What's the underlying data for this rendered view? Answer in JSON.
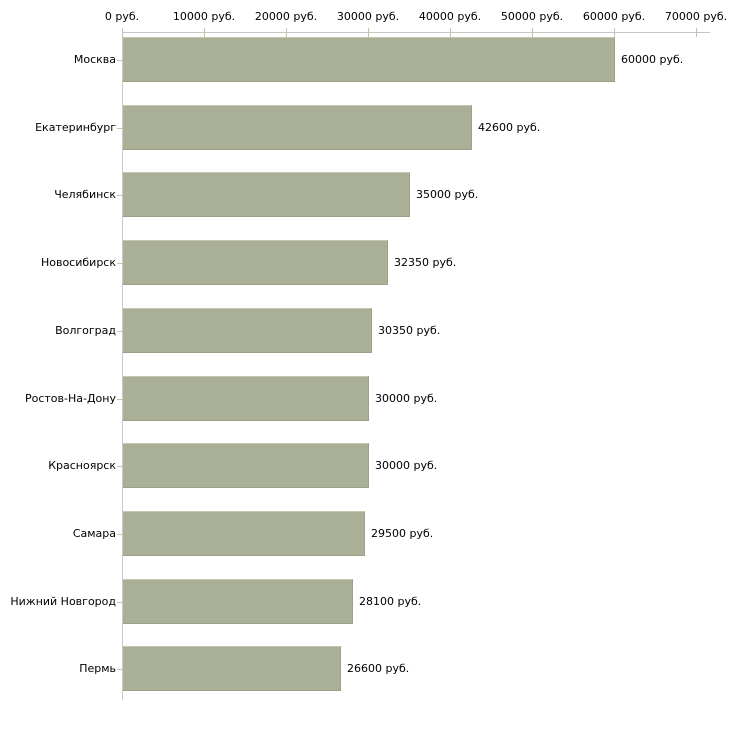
{
  "chart_data": {
    "type": "bar",
    "orientation": "horizontal",
    "title": "",
    "categories": [
      "Москва",
      "Екатеринбург",
      "Челябинск",
      "Новосибирск",
      "Волгоград",
      "Ростов-На-Дону",
      "Красноярск",
      "Самара",
      "Нижний Новгород",
      "Пермь"
    ],
    "values": [
      60000,
      42600,
      35000,
      32350,
      30350,
      30000,
      30000,
      29500,
      28100,
      26600
    ],
    "value_labels": [
      "60000 руб.",
      "42600 руб.",
      "35000 руб.",
      "32350 руб.",
      "30350 руб.",
      "30000 руб.",
      "30000 руб.",
      "29500 руб.",
      "28100 руб.",
      "26600 руб."
    ],
    "x_axis": {
      "min": 0,
      "max": 70000,
      "unit": "руб.",
      "tick_values": [
        0,
        10000,
        20000,
        30000,
        40000,
        50000,
        60000,
        70000
      ],
      "tick_labels": [
        "0 руб.",
        "10000 руб.",
        "20000 руб.",
        "30000 руб.",
        "40000 руб.",
        "50000 руб.",
        "60000 руб.",
        "70000 руб."
      ]
    },
    "grid": false,
    "legend": "none",
    "colors": {
      "bar_fill": "#aab095",
      "axis_line": "#c6c6c6",
      "tick_mark": "#c9c49c",
      "text": "#000000",
      "background": "#ffffff"
    }
  }
}
